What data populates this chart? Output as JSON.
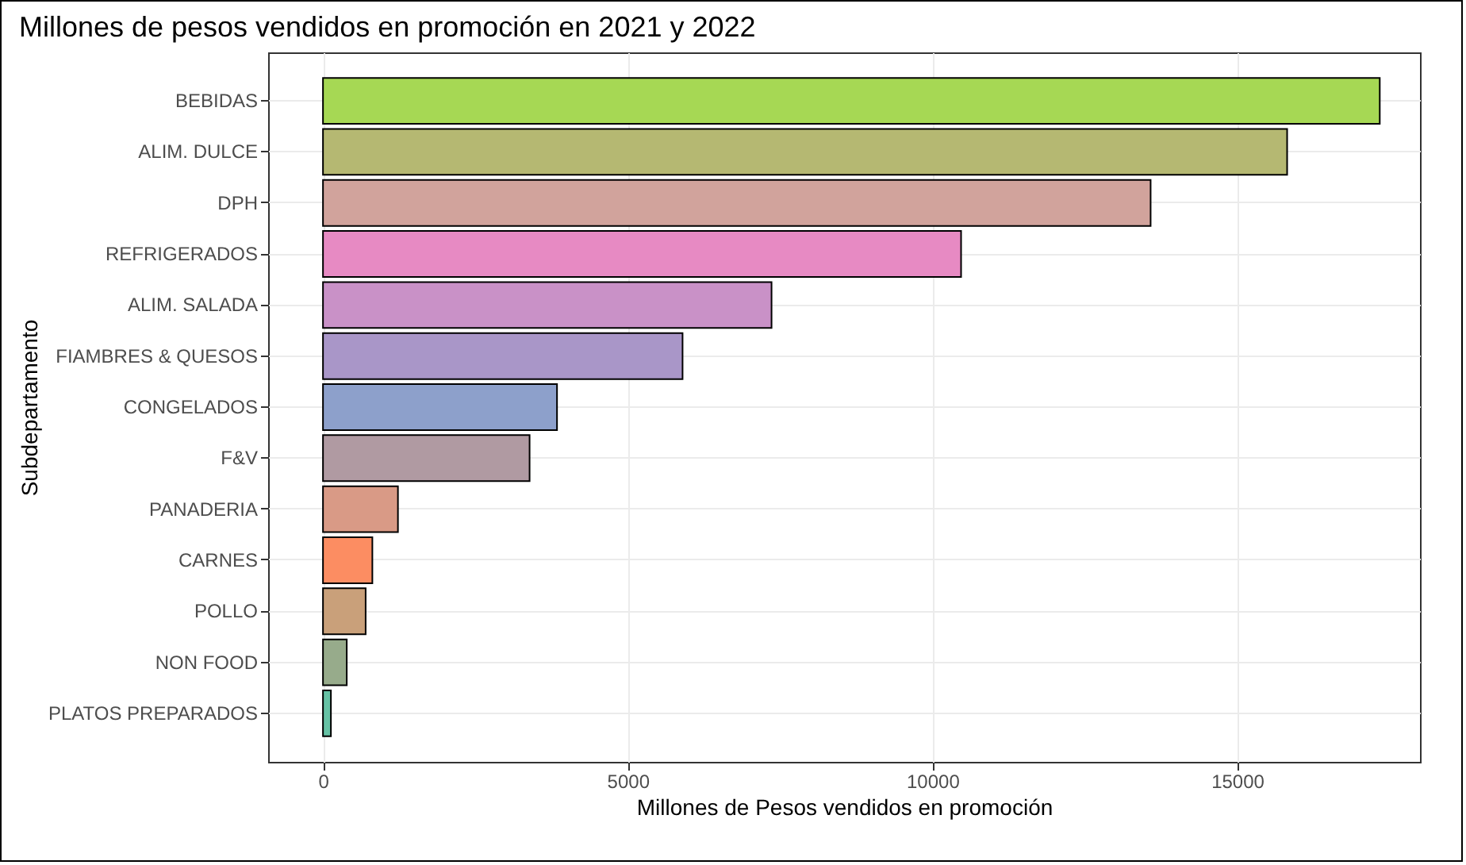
{
  "chart_data": {
    "type": "bar",
    "orientation": "horizontal",
    "title": "Millones de pesos vendidos en promoción en 2021 y 2022",
    "xlabel": "Millones de Pesos vendidos en promoción",
    "ylabel": "Subdepartamento",
    "categories": [
      "BEBIDAS",
      "ALIM. DULCE",
      "DPH",
      "REFRIGERADOS",
      "ALIM. SALADA",
      "FIAMBRES & QUESOS",
      "CONGELADOS",
      "F&V",
      "PANADERIA",
      "CARNES",
      "POLLO",
      "NON FOOD",
      "PLATOS PREPARADOS"
    ],
    "values": [
      17340,
      15820,
      13580,
      10470,
      7360,
      5900,
      3840,
      3390,
      1230,
      810,
      700,
      390,
      130
    ],
    "colors": [
      "#a6d854",
      "#b5b872",
      "#d1a39c",
      "#e78ac3",
      "#c991c7",
      "#a996c8",
      "#8da0cb",
      "#b09aa2",
      "#d99a86",
      "#fc8d62",
      "#c9a07a",
      "#97ab8b",
      "#66c2a5"
    ],
    "xlim": [
      -900,
      18000
    ],
    "xticks": [
      0,
      5000,
      10000,
      15000
    ],
    "grid": true
  }
}
